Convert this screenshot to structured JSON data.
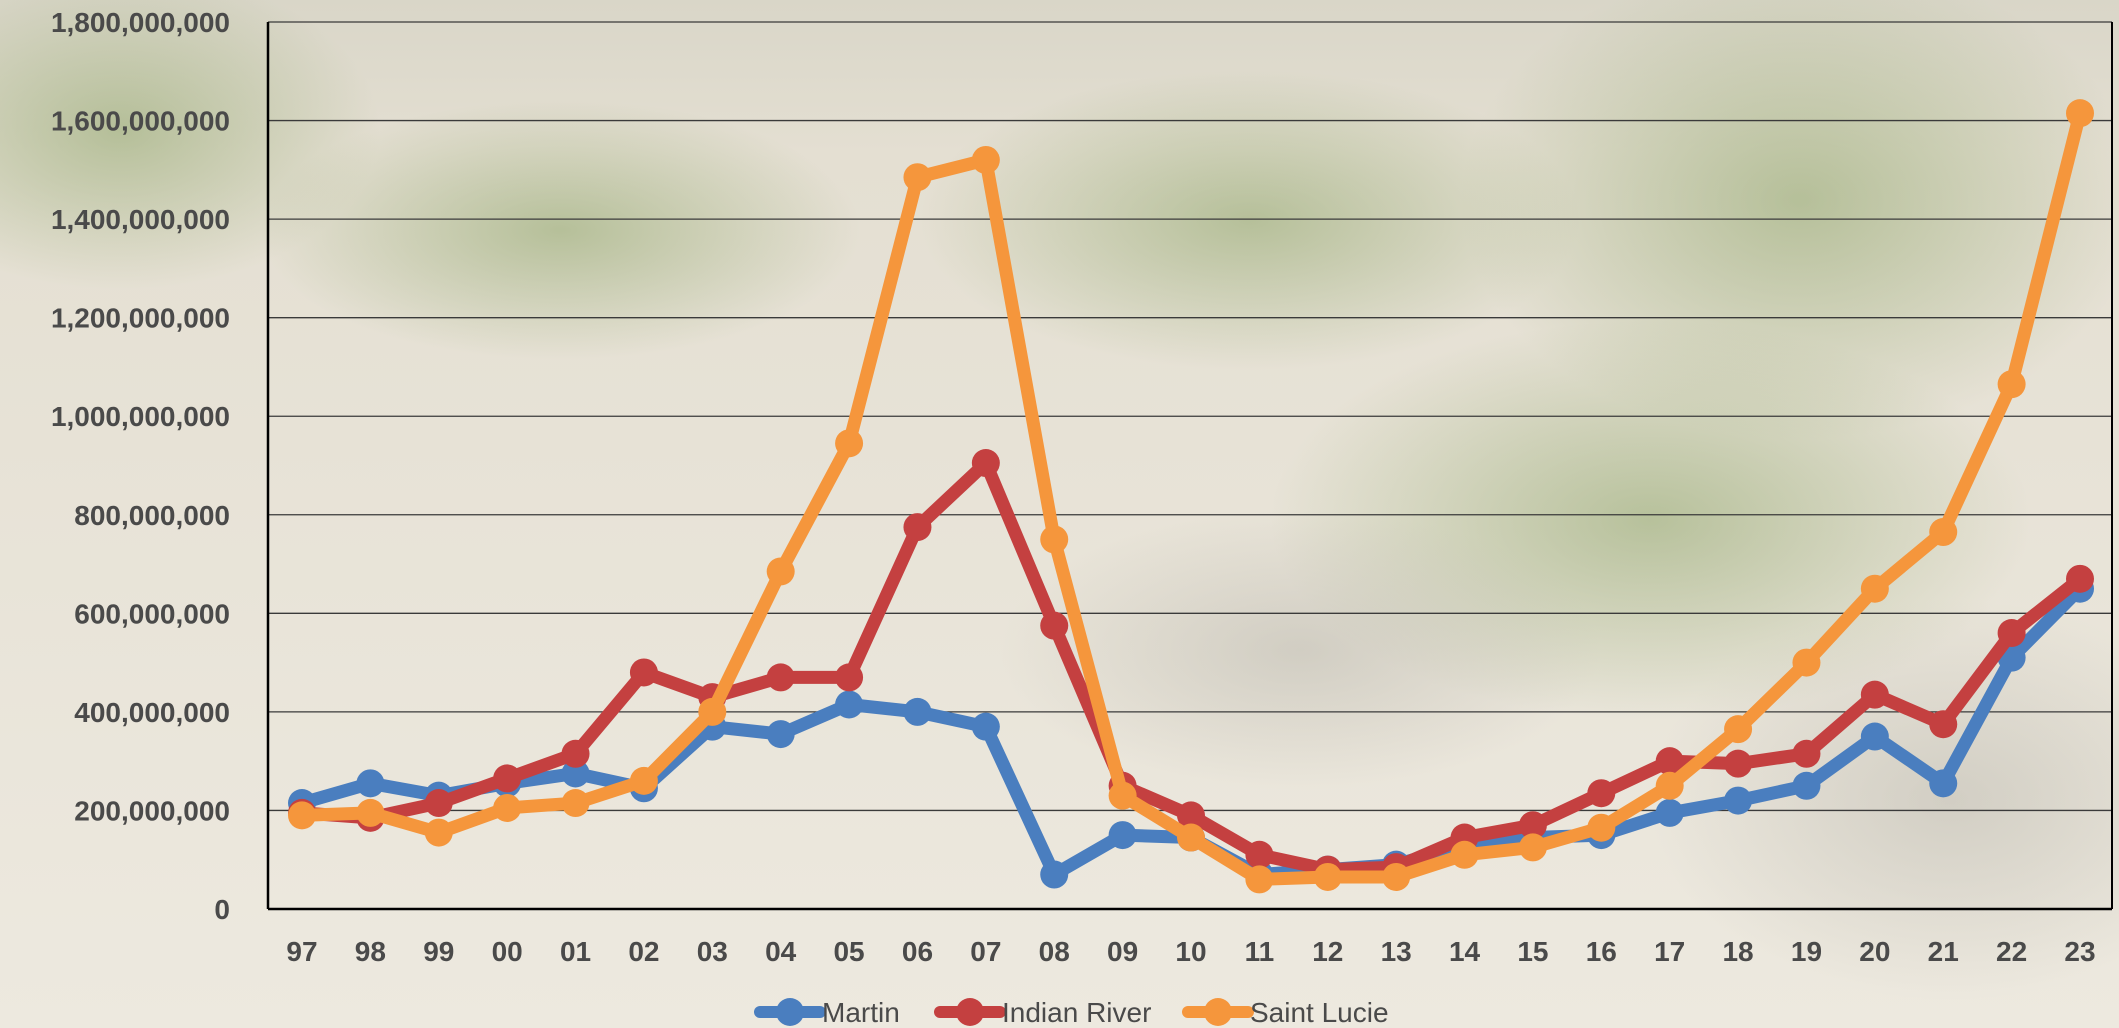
{
  "chart_data": {
    "type": "line",
    "title": "",
    "xlabel": "",
    "ylabel": "",
    "categories": [
      "97",
      "98",
      "99",
      "00",
      "01",
      "02",
      "03",
      "04",
      "05",
      "06",
      "07",
      "08",
      "09",
      "10",
      "11",
      "12",
      "13",
      "14",
      "15",
      "16",
      "17",
      "18",
      "19",
      "20",
      "21",
      "22",
      "23"
    ],
    "ylim": [
      0,
      1800000000
    ],
    "yticks": [
      0,
      200000000,
      400000000,
      600000000,
      800000000,
      1000000000,
      1200000000,
      1400000000,
      1600000000,
      1800000000
    ],
    "ytick_labels": [
      "0",
      "200,000,000",
      "400,000,000",
      "600,000,000",
      "800,000,000",
      "1,000,000,000",
      "1,200,000,000",
      "1,400,000,000",
      "1,600,000,000",
      "1,800,000,000"
    ],
    "grid": true,
    "legend_position": "bottom",
    "series": [
      {
        "name": "Martin",
        "color": "#4a7ebf",
        "values": [
          215000000,
          255000000,
          230000000,
          255000000,
          275000000,
          245000000,
          370000000,
          355000000,
          415000000,
          400000000,
          370000000,
          70000000,
          150000000,
          145000000,
          70000000,
          80000000,
          90000000,
          130000000,
          145000000,
          150000000,
          195000000,
          220000000,
          250000000,
          350000000,
          255000000,
          510000000,
          650000000
        ]
      },
      {
        "name": "Indian River",
        "color": "#c44040",
        "values": [
          195000000,
          185000000,
          215000000,
          265000000,
          315000000,
          480000000,
          430000000,
          470000000,
          470000000,
          775000000,
          905000000,
          575000000,
          250000000,
          190000000,
          110000000,
          80000000,
          85000000,
          145000000,
          170000000,
          235000000,
          300000000,
          295000000,
          315000000,
          435000000,
          375000000,
          560000000,
          670000000
        ]
      },
      {
        "name": "Saint Lucie",
        "color": "#f5963c",
        "values": [
          190000000,
          195000000,
          155000000,
          205000000,
          215000000,
          260000000,
          400000000,
          685000000,
          945000000,
          1485000000,
          1520000000,
          750000000,
          230000000,
          145000000,
          60000000,
          65000000,
          65000000,
          110000000,
          125000000,
          165000000,
          250000000,
          365000000,
          500000000,
          650000000,
          765000000,
          1065000000,
          1615000000
        ]
      }
    ]
  },
  "background": {
    "sand": "#ece7dc",
    "grass": "#9fb07a"
  }
}
